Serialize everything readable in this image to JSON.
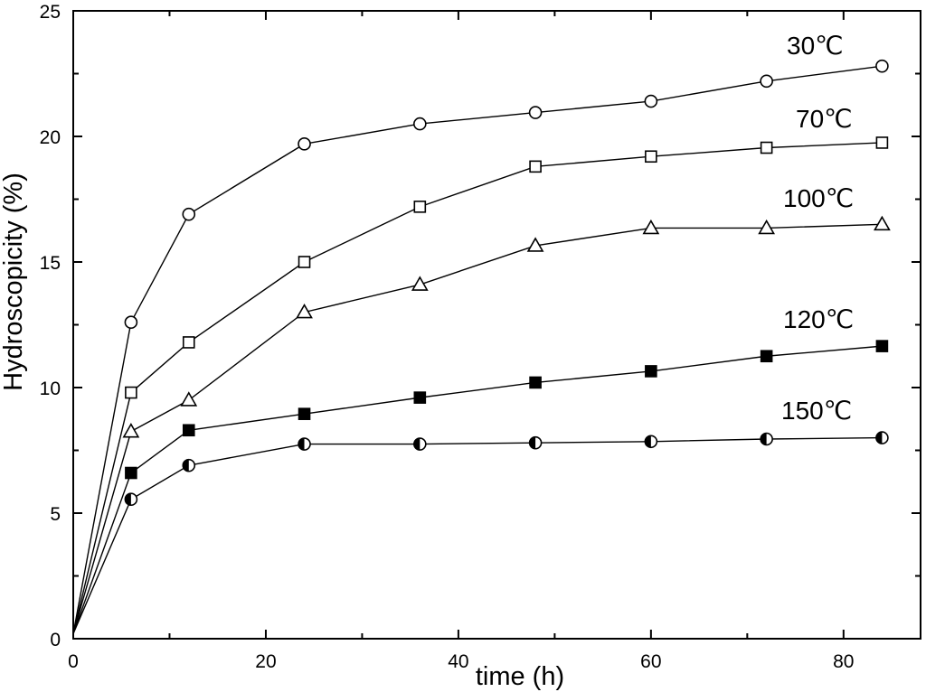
{
  "chart_data": {
    "type": "line",
    "xlabel": "time (h)",
    "ylabel": "Hydroscopicity (%)",
    "xlim": [
      0,
      88
    ],
    "ylim": [
      0,
      25
    ],
    "xticks": [
      "0",
      "20",
      "40",
      "60",
      "80"
    ],
    "yticks": [
      "0",
      "5",
      "10",
      "15",
      "20",
      "25"
    ],
    "x": [
      0,
      6,
      12,
      24,
      36,
      48,
      60,
      72,
      84
    ],
    "series": [
      {
        "name": "30℃",
        "marker": "circle-open",
        "values": [
          0.2,
          12.6,
          16.9,
          19.7,
          20.5,
          20.95,
          21.4,
          22.2,
          22.8
        ]
      },
      {
        "name": "70℃",
        "marker": "square-open",
        "values": [
          0.2,
          9.8,
          11.8,
          15.0,
          17.2,
          18.8,
          19.2,
          19.55,
          19.75
        ]
      },
      {
        "name": "100℃",
        "marker": "triangle-open",
        "values": [
          0.2,
          8.25,
          9.5,
          13.0,
          14.1,
          15.65,
          16.35,
          16.35,
          16.5
        ]
      },
      {
        "name": "120℃",
        "marker": "square-filled",
        "values": [
          0.2,
          6.6,
          8.3,
          8.95,
          9.6,
          10.2,
          10.65,
          11.25,
          11.65
        ]
      },
      {
        "name": "150℃",
        "marker": "circle-half",
        "values": [
          0.2,
          5.55,
          6.9,
          7.75,
          7.75,
          7.8,
          7.85,
          7.95,
          8.0
        ]
      }
    ],
    "grid": false,
    "legend": "inline labels at right of each series"
  }
}
